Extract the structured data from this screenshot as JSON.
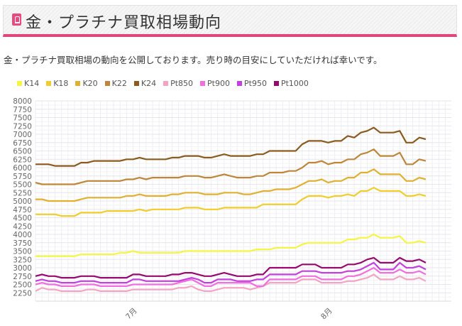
{
  "header": {
    "title": "金・プラチナ買取相場動向",
    "icon": "bookmark-icon"
  },
  "intro": "金・プラチナ買取相場の動向を公開しております。売り時の目安にしていただければ幸いです。",
  "chart_data": {
    "type": "line",
    "title": "",
    "xlabel": "",
    "ylabel": "",
    "ylim": [
      2000,
      8000
    ],
    "yticks": [
      "2250",
      "2500",
      "2750",
      "3000",
      "3250",
      "3500",
      "3750",
      "4000",
      "4250",
      "4500",
      "4750",
      "5000",
      "5250",
      "5500",
      "5750",
      "6000",
      "6250",
      "6500",
      "6750",
      "7000",
      "7250",
      "7500",
      "7750",
      "8000"
    ],
    "x_count": 61,
    "xticks": [
      {
        "index": 15,
        "label": "7月"
      },
      {
        "index": 45,
        "label": "8月"
      }
    ],
    "grid": true,
    "legend_position": "top-left",
    "series": [
      {
        "name": "K14",
        "color": "#f5f542",
        "values": [
          3350,
          3350,
          3350,
          3350,
          3350,
          3350,
          3350,
          3400,
          3400,
          3400,
          3400,
          3400,
          3400,
          3450,
          3450,
          3500,
          3450,
          3450,
          3450,
          3450,
          3450,
          3450,
          3450,
          3500,
          3500,
          3500,
          3500,
          3500,
          3500,
          3500,
          3500,
          3500,
          3500,
          3500,
          3550,
          3550,
          3550,
          3600,
          3600,
          3600,
          3600,
          3700,
          3750,
          3750,
          3750,
          3750,
          3750,
          3750,
          3850,
          3850,
          3900,
          3900,
          4000,
          3900,
          3900,
          3900,
          3950,
          3750,
          3750,
          3800,
          3750
        ]
      },
      {
        "name": "K18",
        "color": "#f2cc2a",
        "values": [
          4600,
          4600,
          4600,
          4600,
          4550,
          4550,
          4550,
          4650,
          4650,
          4650,
          4650,
          4700,
          4700,
          4700,
          4700,
          4700,
          4750,
          4700,
          4750,
          4750,
          4750,
          4750,
          4750,
          4800,
          4800,
          4800,
          4750,
          4750,
          4750,
          4800,
          4800,
          4800,
          4800,
          4800,
          4800,
          4900,
          4900,
          4900,
          4900,
          4900,
          4900,
          5050,
          5150,
          5150,
          5150,
          5100,
          5150,
          5150,
          5200,
          5150,
          5300,
          5300,
          5400,
          5300,
          5300,
          5300,
          5300,
          5150,
          5150,
          5200,
          5150
        ]
      },
      {
        "name": "K20",
        "color": "#e0b02e",
        "values": [
          5050,
          5050,
          5000,
          5000,
          5000,
          5000,
          5000,
          5050,
          5100,
          5100,
          5100,
          5100,
          5100,
          5100,
          5150,
          5150,
          5200,
          5150,
          5150,
          5150,
          5150,
          5200,
          5200,
          5250,
          5250,
          5250,
          5200,
          5200,
          5200,
          5250,
          5250,
          5250,
          5200,
          5200,
          5250,
          5300,
          5300,
          5350,
          5350,
          5350,
          5400,
          5500,
          5600,
          5600,
          5650,
          5550,
          5600,
          5600,
          5700,
          5700,
          5850,
          5850,
          5950,
          5800,
          5800,
          5800,
          5800,
          5600,
          5600,
          5700,
          5650
        ]
      },
      {
        "name": "K22",
        "color": "#c08638",
        "values": [
          5550,
          5500,
          5500,
          5500,
          5500,
          5500,
          5500,
          5550,
          5600,
          5600,
          5600,
          5600,
          5600,
          5600,
          5650,
          5650,
          5700,
          5650,
          5700,
          5700,
          5700,
          5700,
          5700,
          5750,
          5750,
          5750,
          5700,
          5700,
          5750,
          5800,
          5750,
          5700,
          5700,
          5700,
          5750,
          5750,
          5850,
          5850,
          5850,
          5900,
          5900,
          6000,
          6150,
          6150,
          6200,
          6100,
          6150,
          6150,
          6250,
          6250,
          6400,
          6450,
          6550,
          6350,
          6350,
          6350,
          6450,
          6100,
          6100,
          6250,
          6200
        ]
      },
      {
        "name": "K24",
        "color": "#8b5a1c",
        "values": [
          6100,
          6100,
          6100,
          6050,
          6050,
          6050,
          6050,
          6150,
          6150,
          6200,
          6200,
          6200,
          6200,
          6200,
          6250,
          6250,
          6300,
          6250,
          6250,
          6250,
          6250,
          6300,
          6300,
          6350,
          6350,
          6350,
          6300,
          6300,
          6350,
          6400,
          6350,
          6350,
          6350,
          6350,
          6400,
          6400,
          6500,
          6500,
          6500,
          6500,
          6500,
          6700,
          6800,
          6800,
          6800,
          6750,
          6800,
          6800,
          6950,
          6900,
          7050,
          7100,
          7200,
          7050,
          7050,
          7050,
          7100,
          6750,
          6750,
          6900,
          6850
        ]
      },
      {
        "name": "Pt850",
        "color": "#f5a3c3",
        "values": [
          2300,
          2400,
          2350,
          2350,
          2300,
          2300,
          2300,
          2300,
          2350,
          2350,
          2300,
          2300,
          2300,
          2300,
          2300,
          2350,
          2350,
          2350,
          2350,
          2350,
          2350,
          2350,
          2400,
          2400,
          2450,
          2350,
          2300,
          2300,
          2350,
          2400,
          2400,
          2400,
          2400,
          2350,
          2400,
          2450,
          2550,
          2550,
          2550,
          2550,
          2550,
          2650,
          2650,
          2650,
          2550,
          2550,
          2550,
          2550,
          2600,
          2600,
          2650,
          2700,
          2800,
          2650,
          2650,
          2650,
          2750,
          2650,
          2650,
          2700,
          2600
        ]
      },
      {
        "name": "Pt900",
        "color": "#f06ee0",
        "values": [
          2500,
          2550,
          2500,
          2500,
          2450,
          2450,
          2450,
          2500,
          2500,
          2500,
          2450,
          2450,
          2450,
          2450,
          2450,
          2500,
          2500,
          2500,
          2500,
          2500,
          2500,
          2500,
          2550,
          2600,
          2650,
          2550,
          2450,
          2450,
          2550,
          2550,
          2550,
          2550,
          2550,
          2550,
          2450,
          2450,
          2650,
          2650,
          2650,
          2650,
          2650,
          2750,
          2750,
          2750,
          2650,
          2650,
          2650,
          2650,
          2750,
          2750,
          2800,
          2900,
          3000,
          2850,
          2850,
          2850,
          2950,
          2850,
          2850,
          2900,
          2800
        ]
      },
      {
        "name": "Pt950",
        "color": "#c53ee0",
        "values": [
          2600,
          2650,
          2600,
          2600,
          2550,
          2550,
          2550,
          2600,
          2600,
          2600,
          2550,
          2550,
          2550,
          2550,
          2550,
          2650,
          2650,
          2600,
          2600,
          2600,
          2600,
          2600,
          2600,
          2650,
          2700,
          2650,
          2550,
          2550,
          2650,
          2650,
          2650,
          2600,
          2600,
          2600,
          2650,
          2650,
          2800,
          2800,
          2800,
          2800,
          2800,
          2900,
          2900,
          2900,
          2850,
          2850,
          2850,
          2850,
          2900,
          2900,
          2950,
          3050,
          3150,
          2950,
          2950,
          2950,
          3150,
          3000,
          3000,
          3050,
          2950
        ]
      },
      {
        "name": "Pt1000",
        "color": "#950a6e",
        "values": [
          2750,
          2800,
          2750,
          2750,
          2700,
          2700,
          2700,
          2750,
          2750,
          2750,
          2700,
          2700,
          2700,
          2700,
          2700,
          2800,
          2800,
          2750,
          2750,
          2750,
          2750,
          2800,
          2800,
          2850,
          2850,
          2800,
          2750,
          2750,
          2800,
          2850,
          2800,
          2750,
          2750,
          2750,
          2800,
          2800,
          3000,
          3000,
          3000,
          3000,
          3000,
          3100,
          3100,
          3100,
          3000,
          3000,
          3000,
          3000,
          3100,
          3100,
          3150,
          3250,
          3300,
          3150,
          3150,
          3150,
          3300,
          3200,
          3200,
          3250,
          3150
        ]
      }
    ]
  }
}
